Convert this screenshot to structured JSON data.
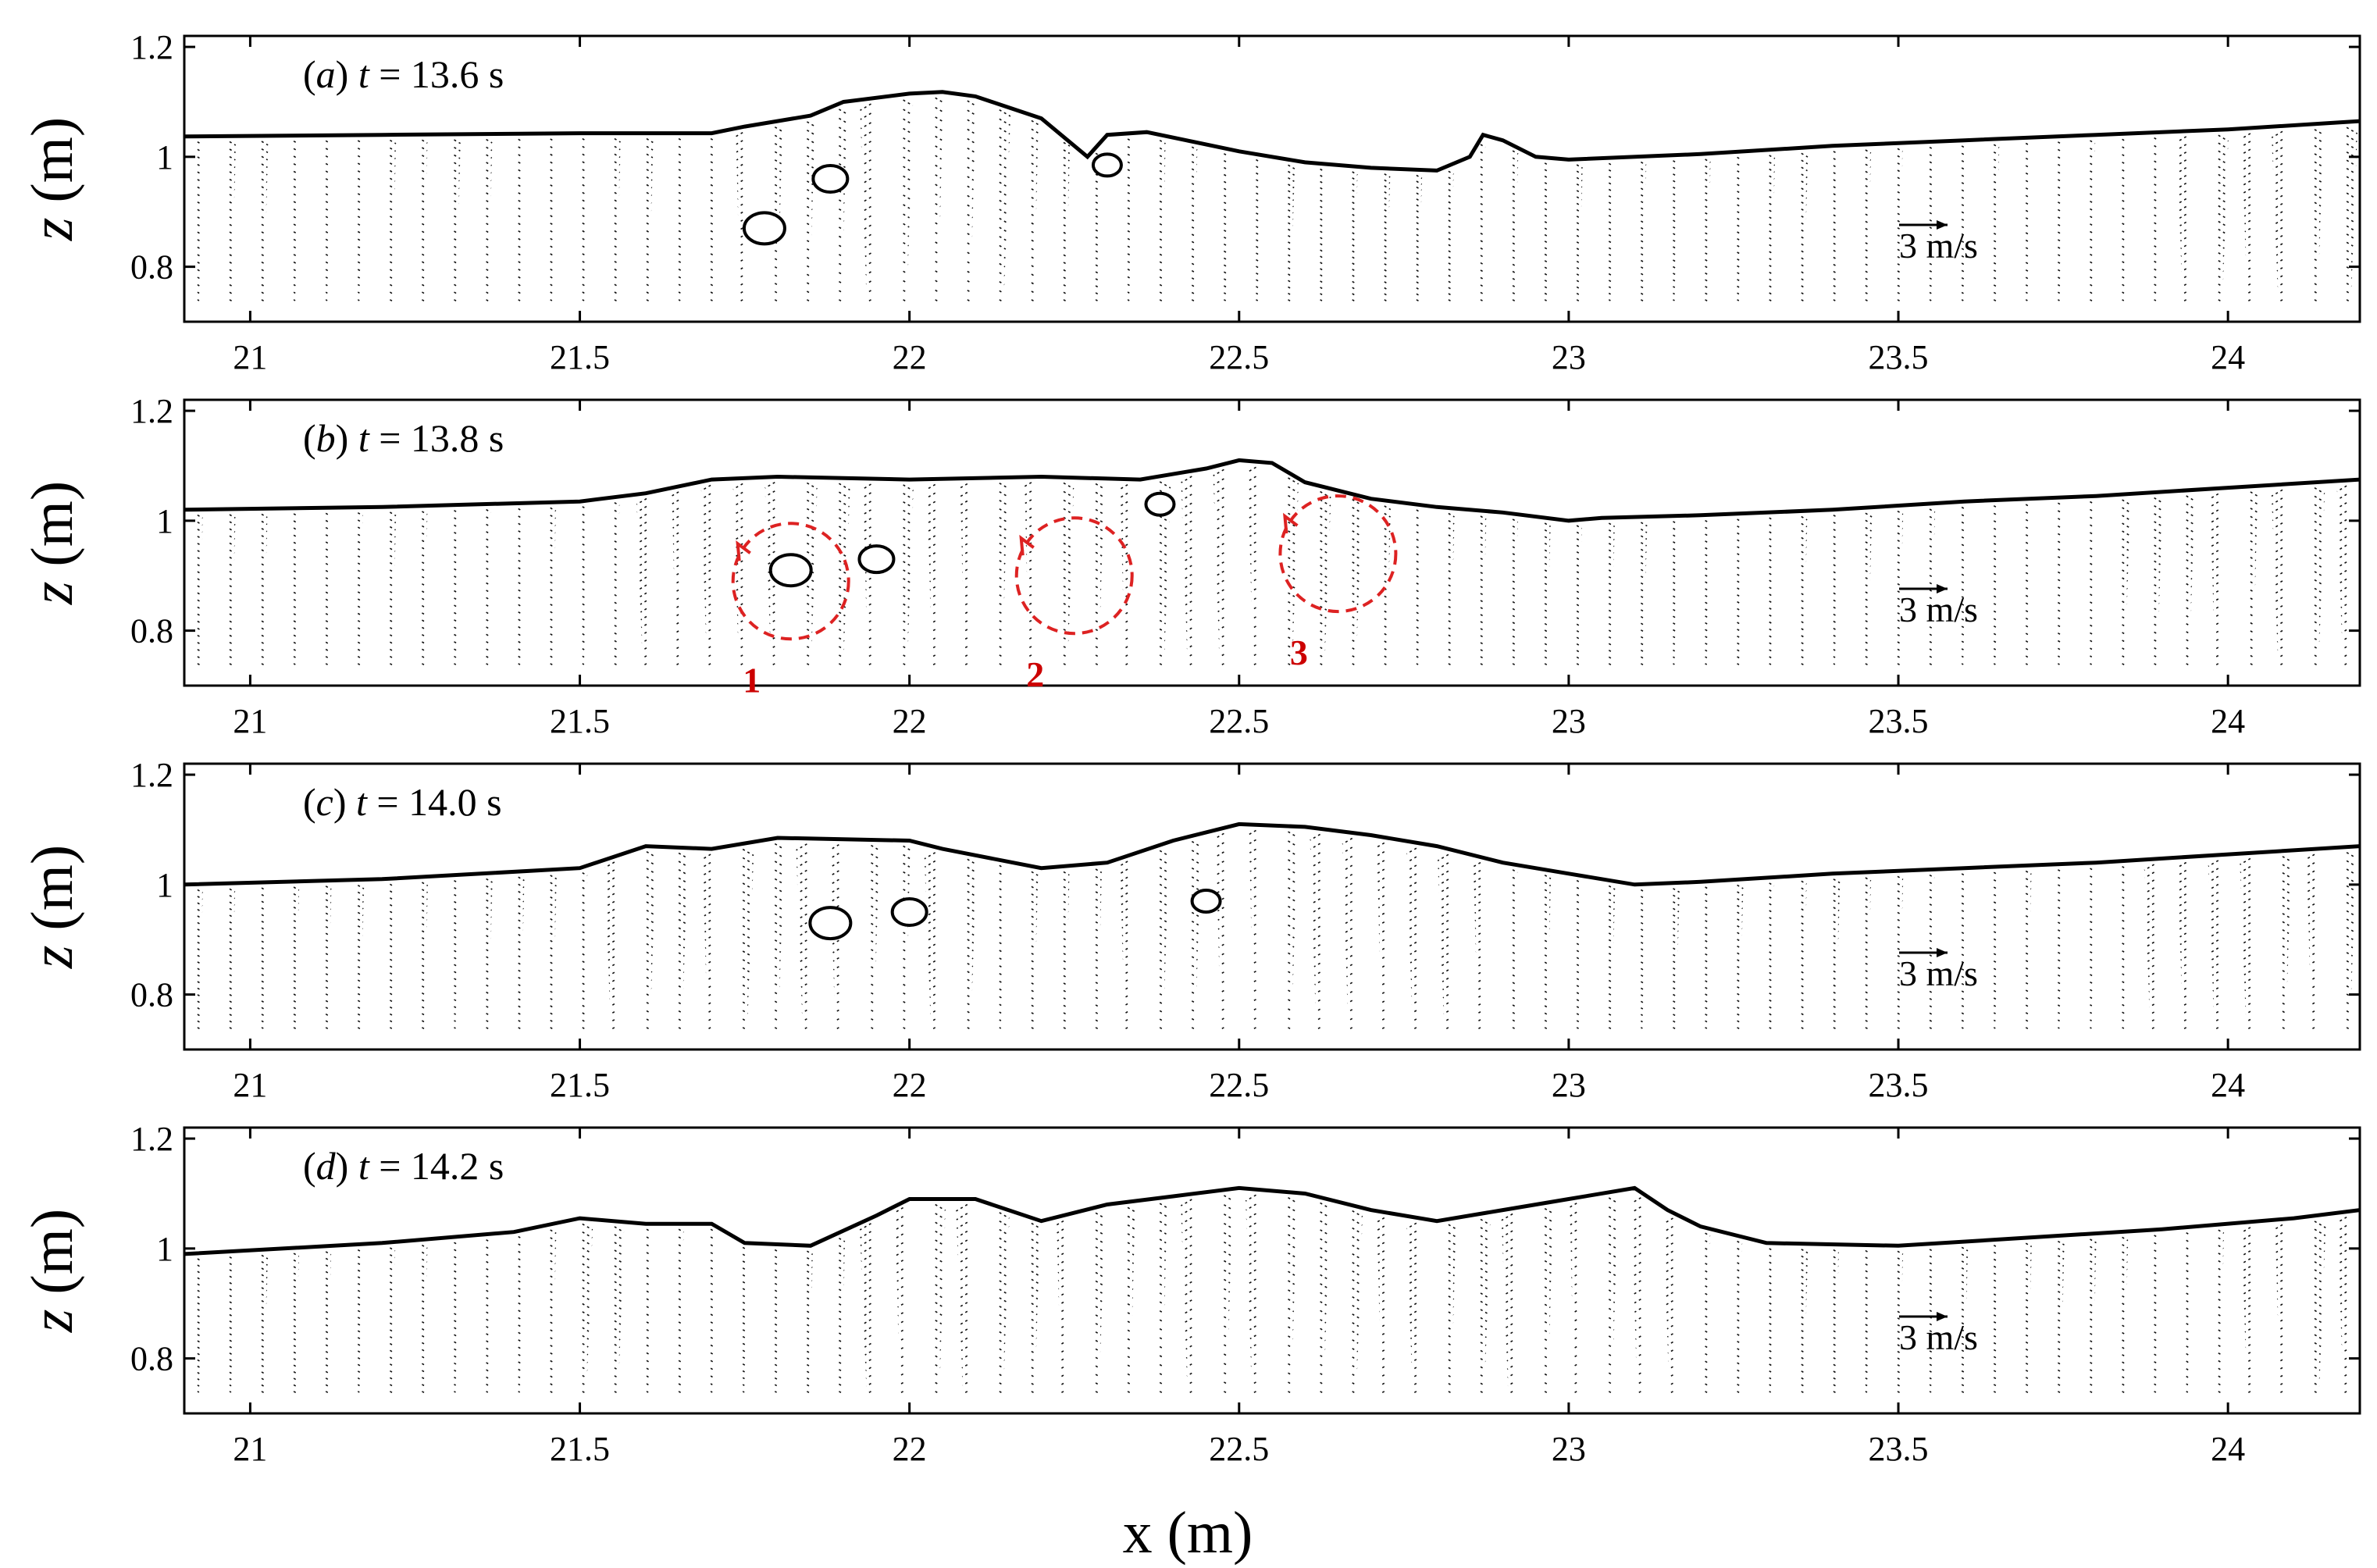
{
  "chart_data": [
    {
      "type": "quiver",
      "panel": "a",
      "label_prefix": "(a)",
      "time_label": "t = 13.6 s",
      "xlim": [
        20.9,
        24.2
      ],
      "ylim": [
        0.7,
        1.22
      ],
      "xticks": [
        21,
        21.5,
        22,
        22.5,
        23,
        23.5,
        24
      ],
      "yticks": [
        0.8,
        1,
        1.2
      ],
      "xtick_labels": [
        "21",
        "21.5",
        "22",
        "22.5",
        "23",
        "23.5",
        "24"
      ],
      "ytick_labels": [
        "0.8",
        "1",
        "1.2"
      ],
      "ylabel": "z (m)",
      "reference_arrow": "3 m/s",
      "surface": [
        [
          20.9,
          1.037
        ],
        [
          21.2,
          1.04
        ],
        [
          21.5,
          1.043
        ],
        [
          21.7,
          1.043
        ],
        [
          21.75,
          1.055
        ],
        [
          21.85,
          1.075
        ],
        [
          21.9,
          1.1
        ],
        [
          22.0,
          1.115
        ],
        [
          22.05,
          1.118
        ],
        [
          22.1,
          1.11
        ],
        [
          22.2,
          1.07
        ],
        [
          22.27,
          1.0
        ],
        [
          22.3,
          1.04
        ],
        [
          22.36,
          1.045
        ],
        [
          22.42,
          1.03
        ],
        [
          22.5,
          1.01
        ],
        [
          22.6,
          0.99
        ],
        [
          22.7,
          0.98
        ],
        [
          22.8,
          0.975
        ],
        [
          22.85,
          1.0
        ],
        [
          22.87,
          1.04
        ],
        [
          22.9,
          1.03
        ],
        [
          22.95,
          1.0
        ],
        [
          23.0,
          0.995
        ],
        [
          23.2,
          1.005
        ],
        [
          23.4,
          1.02
        ],
        [
          23.6,
          1.03
        ],
        [
          23.8,
          1.04
        ],
        [
          24.0,
          1.05
        ],
        [
          24.2,
          1.065
        ]
      ],
      "bubbles": [
        {
          "x": 21.78,
          "z": 0.87
        },
        {
          "x": 21.88,
          "z": 0.96
        },
        {
          "x": 22.3,
          "z": 0.985
        }
      ],
      "annotations": []
    },
    {
      "type": "quiver",
      "panel": "b",
      "label_prefix": "(b)",
      "time_label": "t = 13.8 s",
      "xlim": [
        20.9,
        24.2
      ],
      "ylim": [
        0.7,
        1.22
      ],
      "xticks": [
        21,
        21.5,
        22,
        22.5,
        23,
        23.5,
        24
      ],
      "yticks": [
        0.8,
        1,
        1.2
      ],
      "xtick_labels": [
        "21",
        "21.5",
        "22",
        "22.5",
        "23",
        "23.5",
        "24"
      ],
      "ytick_labels": [
        "0.8",
        "1",
        "1.2"
      ],
      "ylabel": "z (m)",
      "reference_arrow": "3 m/s",
      "surface": [
        [
          20.9,
          1.02
        ],
        [
          21.2,
          1.025
        ],
        [
          21.5,
          1.035
        ],
        [
          21.6,
          1.05
        ],
        [
          21.7,
          1.075
        ],
        [
          21.8,
          1.08
        ],
        [
          22.0,
          1.075
        ],
        [
          22.2,
          1.08
        ],
        [
          22.35,
          1.075
        ],
        [
          22.45,
          1.095
        ],
        [
          22.5,
          1.11
        ],
        [
          22.55,
          1.105
        ],
        [
          22.6,
          1.07
        ],
        [
          22.7,
          1.04
        ],
        [
          22.8,
          1.025
        ],
        [
          22.9,
          1.015
        ],
        [
          23.0,
          1.0
        ],
        [
          23.05,
          1.005
        ],
        [
          23.2,
          1.01
        ],
        [
          23.4,
          1.02
        ],
        [
          23.6,
          1.035
        ],
        [
          23.8,
          1.045
        ],
        [
          24.0,
          1.06
        ],
        [
          24.2,
          1.075
        ]
      ],
      "bubbles": [
        {
          "x": 21.82,
          "z": 0.91
        },
        {
          "x": 21.95,
          "z": 0.93
        },
        {
          "x": 22.38,
          "z": 1.03
        }
      ],
      "annotations": [
        {
          "label": "1",
          "x": 21.82,
          "z": 0.89
        },
        {
          "label": "2",
          "x": 22.25,
          "z": 0.9
        },
        {
          "label": "3",
          "x": 22.65,
          "z": 0.94
        }
      ]
    },
    {
      "type": "quiver",
      "panel": "c",
      "label_prefix": "(c)",
      "time_label": "t = 14.0 s",
      "xlim": [
        20.9,
        24.2
      ],
      "ylim": [
        0.7,
        1.22
      ],
      "xticks": [
        21,
        21.5,
        22,
        22.5,
        23,
        23.5,
        24
      ],
      "yticks": [
        0.8,
        1,
        1.2
      ],
      "xtick_labels": [
        "21",
        "21.5",
        "22",
        "22.5",
        "23",
        "23.5",
        "24"
      ],
      "ytick_labels": [
        "0.8",
        "1",
        "1.2"
      ],
      "ylabel": "z (m)",
      "reference_arrow": "3 m/s",
      "surface": [
        [
          20.9,
          1.0
        ],
        [
          21.2,
          1.01
        ],
        [
          21.5,
          1.03
        ],
        [
          21.6,
          1.07
        ],
        [
          21.7,
          1.065
        ],
        [
          21.8,
          1.085
        ],
        [
          22.0,
          1.08
        ],
        [
          22.05,
          1.065
        ],
        [
          22.2,
          1.03
        ],
        [
          22.3,
          1.04
        ],
        [
          22.4,
          1.08
        ],
        [
          22.5,
          1.11
        ],
        [
          22.6,
          1.105
        ],
        [
          22.7,
          1.09
        ],
        [
          22.8,
          1.07
        ],
        [
          22.9,
          1.04
        ],
        [
          23.0,
          1.02
        ],
        [
          23.1,
          1.0
        ],
        [
          23.2,
          1.005
        ],
        [
          23.4,
          1.02
        ],
        [
          23.6,
          1.03
        ],
        [
          23.8,
          1.04
        ],
        [
          24.0,
          1.055
        ],
        [
          24.2,
          1.07
        ]
      ],
      "bubbles": [
        {
          "x": 21.88,
          "z": 0.93
        },
        {
          "x": 22.0,
          "z": 0.95
        },
        {
          "x": 22.45,
          "z": 0.97
        }
      ],
      "annotations": []
    },
    {
      "type": "quiver",
      "panel": "d",
      "label_prefix": "(d)",
      "time_label": "t = 14.2 s",
      "xlim": [
        20.9,
        24.2
      ],
      "ylim": [
        0.7,
        1.22
      ],
      "xticks": [
        21,
        21.5,
        22,
        22.5,
        23,
        23.5,
        24
      ],
      "yticks": [
        0.8,
        1,
        1.2
      ],
      "xtick_labels": [
        "21",
        "21.5",
        "22",
        "22.5",
        "23",
        "23.5",
        "24"
      ],
      "ytick_labels": [
        "0.8",
        "1",
        "1.2"
      ],
      "ylabel": "z (m)",
      "reference_arrow": "3 m/s",
      "surface": [
        [
          20.9,
          0.99
        ],
        [
          21.2,
          1.01
        ],
        [
          21.4,
          1.03
        ],
        [
          21.5,
          1.055
        ],
        [
          21.6,
          1.045
        ],
        [
          21.7,
          1.045
        ],
        [
          21.75,
          1.01
        ],
        [
          21.85,
          1.005
        ],
        [
          21.95,
          1.06
        ],
        [
          22.0,
          1.09
        ],
        [
          22.1,
          1.09
        ],
        [
          22.2,
          1.05
        ],
        [
          22.3,
          1.08
        ],
        [
          22.4,
          1.095
        ],
        [
          22.5,
          1.11
        ],
        [
          22.6,
          1.1
        ],
        [
          22.7,
          1.07
        ],
        [
          22.8,
          1.05
        ],
        [
          22.9,
          1.07
        ],
        [
          23.0,
          1.09
        ],
        [
          23.1,
          1.11
        ],
        [
          23.15,
          1.07
        ],
        [
          23.2,
          1.04
        ],
        [
          23.3,
          1.01
        ],
        [
          23.5,
          1.005
        ],
        [
          23.7,
          1.02
        ],
        [
          23.9,
          1.035
        ],
        [
          24.1,
          1.055
        ],
        [
          24.2,
          1.07
        ]
      ],
      "bubbles": [],
      "annotations": []
    }
  ],
  "shared_xlabel": "x (m)"
}
